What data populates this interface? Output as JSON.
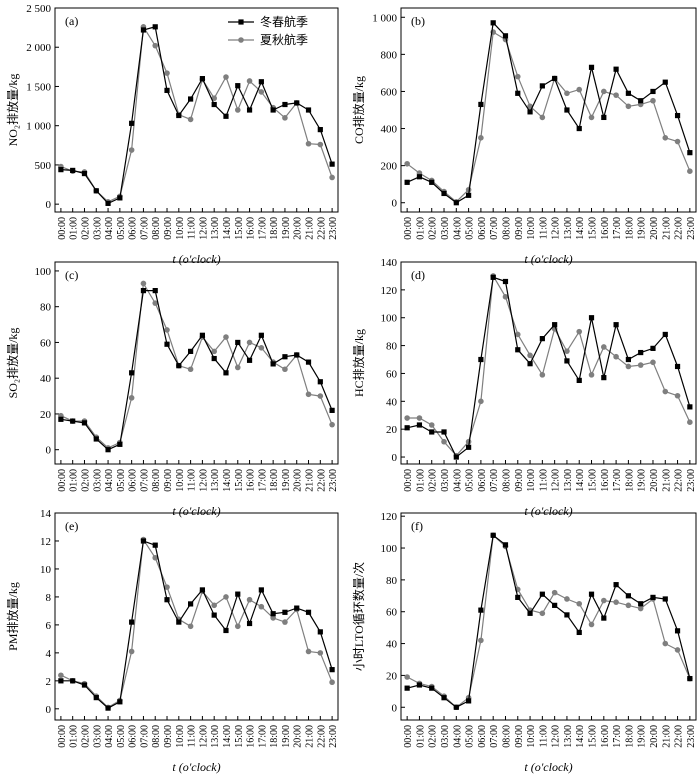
{
  "legend": {
    "series_a": "冬春航季",
    "series_b": "夏秋航季"
  },
  "colors": {
    "series_a": "#000000",
    "series_b": "#7f7f7f"
  },
  "chart_data": [
    {
      "type": "line",
      "panel_label": "(a)",
      "ylabel": "NO₂排放量/kg",
      "xlabel": "t (o'clock)",
      "categories": [
        "00:00",
        "01:00",
        "02:00",
        "03:00",
        "04:00",
        "05:00",
        "06:00",
        "07:00",
        "08:00",
        "09:00",
        "10:00",
        "11:00",
        "12:00",
        "13:00",
        "14:00",
        "15:00",
        "16:00",
        "17:00",
        "18:00",
        "19:00",
        "20:00",
        "21:00",
        "22:00",
        "23:00"
      ],
      "ylim": [
        -100,
        2500
      ],
      "yticks": [
        "0",
        "500",
        "1 000",
        "1 500",
        "2 000",
        "2 500"
      ],
      "ytick_values": [
        0,
        500,
        1000,
        1500,
        2000,
        2500
      ],
      "legend_shown": true,
      "series": [
        {
          "name": "冬春航季",
          "values": [
            440,
            430,
            390,
            170,
            10,
            80,
            1030,
            2220,
            2260,
            1450,
            1130,
            1340,
            1600,
            1270,
            1120,
            1510,
            1200,
            1560,
            1200,
            1270,
            1290,
            1200,
            950,
            510
          ]
        },
        {
          "name": "夏秋航季",
          "values": [
            480,
            420,
            410,
            170,
            30,
            100,
            690,
            2260,
            2020,
            1670,
            1140,
            1080,
            1590,
            1350,
            1620,
            1200,
            1570,
            1430,
            1230,
            1100,
            1290,
            770,
            760,
            340
          ]
        }
      ]
    },
    {
      "type": "line",
      "panel_label": "(b)",
      "ylabel": "CO排放量/kg",
      "xlabel": "t (o'clock)",
      "categories": [
        "00:00",
        "01:00",
        "02:00",
        "03:00",
        "04:00",
        "05:00",
        "06:00",
        "07:00",
        "08:00",
        "09:00",
        "10:00",
        "11:00",
        "12:00",
        "13:00",
        "14:00",
        "15:00",
        "16:00",
        "17:00",
        "18:00",
        "19:00",
        "20:00",
        "21:00",
        "22:00",
        "23:00"
      ],
      "ylim": [
        -50,
        1050
      ],
      "yticks": [
        "0",
        "200",
        "400",
        "600",
        "800",
        "1 000"
      ],
      "ytick_values": [
        0,
        200,
        400,
        600,
        800,
        1000
      ],
      "legend_shown": false,
      "series": [
        {
          "name": "冬春航季",
          "values": [
            110,
            140,
            110,
            50,
            0,
            40,
            530,
            970,
            900,
            590,
            490,
            630,
            670,
            500,
            400,
            730,
            460,
            720,
            590,
            550,
            600,
            650,
            470,
            270
          ]
        },
        {
          "name": "夏秋航季",
          "values": [
            210,
            160,
            120,
            60,
            5,
            70,
            350,
            920,
            880,
            680,
            520,
            460,
            670,
            590,
            610,
            460,
            600,
            580,
            520,
            530,
            550,
            350,
            330,
            170
          ]
        }
      ]
    },
    {
      "type": "line",
      "panel_label": "(c)",
      "ylabel": "SO₂排放量/kg",
      "xlabel": "t (o'clock)",
      "categories": [
        "00:00",
        "01:00",
        "02:00",
        "03:00",
        "04:00",
        "05:00",
        "06:00",
        "07:00",
        "08:00",
        "09:00",
        "10:00",
        "11:00",
        "12:00",
        "13:00",
        "14:00",
        "15:00",
        "16:00",
        "17:00",
        "18:00",
        "19:00",
        "20:00",
        "21:00",
        "22:00",
        "23:00"
      ],
      "ylim": [
        -8,
        105
      ],
      "yticks": [
        "0",
        "20",
        "40",
        "60",
        "80",
        "100"
      ],
      "ytick_values": [
        0,
        20,
        40,
        60,
        80,
        100
      ],
      "legend_shown": false,
      "series": [
        {
          "name": "冬春航季",
          "values": [
            17,
            16,
            15,
            6,
            0,
            3,
            43,
            89,
            89,
            59,
            47,
            55,
            64,
            51,
            43,
            60,
            50,
            64,
            48,
            52,
            53,
            49,
            38,
            22
          ]
        },
        {
          "name": "夏秋航季",
          "values": [
            19,
            16,
            16,
            7,
            1,
            4,
            29,
            93,
            82,
            67,
            47,
            45,
            63,
            55,
            63,
            46,
            60,
            57,
            49,
            45,
            53,
            31,
            30,
            14
          ]
        }
      ]
    },
    {
      "type": "line",
      "panel_label": "(d)",
      "ylabel": "HC排放量/kg",
      "xlabel": "t (o'clock)",
      "categories": [
        "00:00",
        "01:00",
        "02:00",
        "03:00",
        "04:00",
        "05:00",
        "06:00",
        "07:00",
        "08:00",
        "09:00",
        "10:00",
        "11:00",
        "12:00",
        "13:00",
        "14:00",
        "15:00",
        "16:00",
        "17:00",
        "18:00",
        "19:00",
        "20:00",
        "21:00",
        "22:00",
        "23:00"
      ],
      "ylim": [
        -5,
        140
      ],
      "yticks": [
        "0",
        "20",
        "40",
        "60",
        "80",
        "100",
        "120",
        "140"
      ],
      "ytick_values": [
        0,
        20,
        40,
        60,
        80,
        100,
        120,
        140
      ],
      "legend_shown": false,
      "series": [
        {
          "name": "冬春航季",
          "values": [
            21,
            23,
            18,
            18,
            0,
            7,
            70,
            129,
            126,
            77,
            67,
            85,
            95,
            69,
            55,
            100,
            57,
            95,
            70,
            75,
            78,
            88,
            65,
            36
          ]
        },
        {
          "name": "夏秋航季",
          "values": [
            28,
            28,
            23,
            11,
            1,
            11,
            40,
            130,
            115,
            88,
            73,
            59,
            92,
            76,
            90,
            59,
            79,
            72,
            65,
            66,
            68,
            47,
            44,
            25
          ]
        }
      ]
    },
    {
      "type": "line",
      "panel_label": "(e)",
      "ylabel": "PM排放量/kg",
      "xlabel": "t (o'clock)",
      "categories": [
        "00:00",
        "01:00",
        "02:00",
        "03:00",
        "04:00",
        "05:00",
        "06:00",
        "07:00",
        "08:00",
        "09:00",
        "10:00",
        "11:00",
        "12:00",
        "13:00",
        "14:00",
        "15:00",
        "16:00",
        "17:00",
        "18:00",
        "19:00",
        "20:00",
        "21:00",
        "22:00",
        "23:00"
      ],
      "ylim": [
        -0.8,
        14
      ],
      "yticks": [
        "0",
        "2",
        "4",
        "6",
        "8",
        "10",
        "12",
        "14"
      ],
      "ytick_values": [
        0,
        2,
        4,
        6,
        8,
        10,
        12,
        14
      ],
      "legend_shown": false,
      "series": [
        {
          "name": "冬春航季",
          "values": [
            2.0,
            2.0,
            1.7,
            0.8,
            0.05,
            0.5,
            6.2,
            12.0,
            11.7,
            7.8,
            6.2,
            7.5,
            8.5,
            6.7,
            5.6,
            8.2,
            6.1,
            8.5,
            6.8,
            6.9,
            7.2,
            6.9,
            5.5,
            2.8
          ]
        },
        {
          "name": "夏秋航季",
          "values": [
            2.4,
            2.0,
            1.8,
            0.9,
            0.1,
            0.6,
            4.1,
            12.1,
            10.8,
            8.7,
            6.4,
            5.9,
            8.4,
            7.4,
            8.0,
            5.9,
            7.8,
            7.3,
            6.5,
            6.2,
            7.1,
            4.1,
            4.0,
            1.9
          ]
        }
      ]
    },
    {
      "type": "line",
      "panel_label": "(f)",
      "ylabel": "小时LTO循环数量/次",
      "xlabel": "t (o'clock)",
      "categories": [
        "00:00",
        "01:00",
        "02:00",
        "03:00",
        "04:00",
        "05:00",
        "06:00",
        "07:00",
        "08:00",
        "09:00",
        "10:00",
        "11:00",
        "12:00",
        "13:00",
        "14:00",
        "15:00",
        "16:00",
        "17:00",
        "18:00",
        "19:00",
        "20:00",
        "21:00",
        "22:00",
        "23:00"
      ],
      "ylim": [
        -8,
        122
      ],
      "yticks": [
        "0",
        "20",
        "40",
        "60",
        "80",
        "100",
        "120"
      ],
      "ytick_values": [
        0,
        20,
        40,
        60,
        80,
        100,
        120
      ],
      "legend_shown": false,
      "series": [
        {
          "name": "冬春航季",
          "values": [
            12,
            14,
            12,
            6,
            0,
            4,
            61,
            108,
            102,
            69,
            59,
            71,
            64,
            58,
            47,
            71,
            56,
            77,
            70,
            65,
            69,
            68,
            48,
            18
          ]
        },
        {
          "name": "夏秋航季",
          "values": [
            19,
            15,
            13,
            7,
            0,
            6,
            42,
            108,
            101,
            74,
            61,
            59,
            72,
            68,
            65,
            52,
            67,
            66,
            64,
            62,
            68,
            40,
            36,
            18
          ]
        }
      ]
    }
  ]
}
